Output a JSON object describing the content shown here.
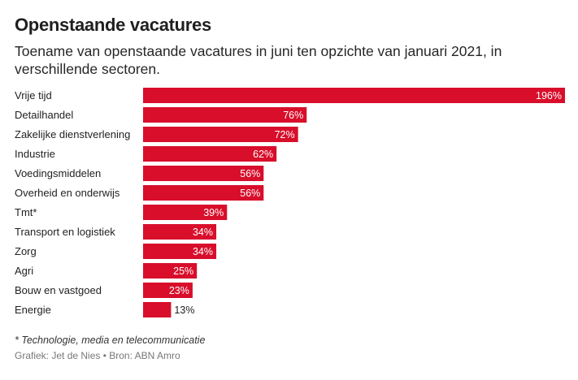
{
  "title": "Openstaande vacatures",
  "subtitle": "Toename van openstaande vacatures in juni ten opzichte van januari 2021, in verschillende sectoren.",
  "footnote": "* Technologie, media en telecommunicatie",
  "credits": "Grafiek: Jet de Nies • Bron: ABN Amro",
  "colors": {
    "bar": "#d80e2b"
  },
  "chart_data": {
    "type": "bar",
    "orientation": "horizontal",
    "title": "Openstaande vacatures",
    "subtitle": "Toename van openstaande vacatures in juni ten opzichte van januari 2021, in verschillende sectoren.",
    "categories": [
      "Vrije tijd",
      "Detailhandel",
      "Zakelijke dienstverlening",
      "Industrie",
      "Voedingsmiddelen",
      "Overheid en onderwijs",
      "Tmt*",
      "Transport en logistiek",
      "Zorg",
      "Agri",
      "Bouw en vastgoed",
      "Energie"
    ],
    "values": [
      196,
      76,
      72,
      62,
      56,
      56,
      39,
      34,
      34,
      25,
      23,
      13
    ],
    "value_labels": [
      "196%",
      "76%",
      "72%",
      "62%",
      "56%",
      "56%",
      "39%",
      "34%",
      "34%",
      "25%",
      "23%",
      "13%"
    ],
    "unit": "%",
    "xlim": [
      0,
      196
    ],
    "grid": false,
    "legend": "none"
  }
}
